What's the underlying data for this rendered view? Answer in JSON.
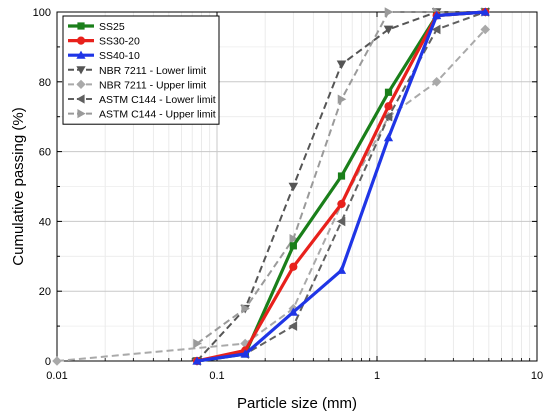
{
  "chart_data": {
    "type": "line",
    "xlabel": "Particle size (mm)",
    "ylabel": "Cumulative passing (%)",
    "xscale": "log",
    "xlim": [
      0.01,
      10
    ],
    "ylim": [
      0,
      100
    ],
    "grid": true,
    "legend_position": "top-left",
    "x_tick_labels": [
      "0.01",
      "0.1",
      "1",
      "10"
    ],
    "y_tick_labels": [
      "0",
      "20",
      "40",
      "60",
      "80",
      "100"
    ],
    "series": [
      {
        "name": "SS25",
        "color": "#1a7f1a",
        "line_style": "solid",
        "marker": "square",
        "x": [
          0.075,
          0.15,
          0.3,
          0.6,
          1.18,
          2.36,
          4.75
        ],
        "y": [
          0,
          2,
          33,
          53,
          77,
          99,
          100
        ]
      },
      {
        "name": "SS30-20",
        "color": "#e8211c",
        "line_style": "solid",
        "marker": "circle",
        "x": [
          0.075,
          0.15,
          0.3,
          0.6,
          1.18,
          2.36,
          4.75
        ],
        "y": [
          0,
          3,
          27,
          45,
          73,
          99,
          100
        ]
      },
      {
        "name": "SS40-10",
        "color": "#1f35e6",
        "line_style": "solid",
        "marker": "triangle-up",
        "x": [
          0.075,
          0.15,
          0.3,
          0.6,
          1.18,
          2.36,
          4.75
        ],
        "y": [
          0,
          2,
          14,
          26,
          64,
          99,
          100
        ]
      },
      {
        "name": "NBR 7211 - Lower limit",
        "color": "#555555",
        "line_style": "dashed",
        "marker": "triangle-down",
        "x": [
          0.075,
          0.15,
          0.3,
          0.6,
          1.18,
          2.36,
          4.75
        ],
        "y": [
          0,
          15,
          50,
          85,
          95,
          100,
          100
        ]
      },
      {
        "name": "NBR 7211 - Upper limit",
        "color": "#a9a9a9",
        "line_style": "dashed",
        "marker": "diamond",
        "x": [
          0.01,
          0.15,
          0.3,
          0.6,
          1.18,
          2.36,
          4.75
        ],
        "y": [
          0,
          5,
          15,
          45,
          70,
          80,
          95
        ]
      },
      {
        "name": "ASTM C144 - Lower limit",
        "color": "#606060",
        "line_style": "dashed",
        "marker": "triangle-left",
        "x": [
          0.075,
          0.15,
          0.3,
          0.6,
          1.18,
          2.36,
          4.75
        ],
        "y": [
          0,
          2,
          10,
          40,
          70,
          95,
          100
        ]
      },
      {
        "name": "ASTM C144 - Upper limit",
        "color": "#9a9a9a",
        "line_style": "dashed",
        "marker": "triangle-right",
        "x": [
          0.075,
          0.15,
          0.3,
          0.6,
          1.18,
          2.36,
          4.75
        ],
        "y": [
          5,
          15,
          35,
          75,
          100,
          100,
          100
        ]
      }
    ]
  }
}
